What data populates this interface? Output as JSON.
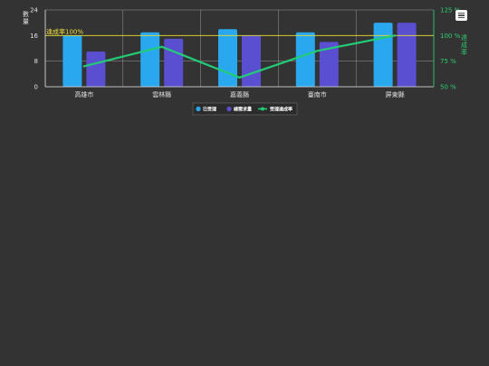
{
  "chart_data": {
    "type": "bar",
    "categories": [
      "高雄市",
      "雲林縣",
      "嘉義縣",
      "臺南市",
      "屏東縣"
    ],
    "series": [
      {
        "name": "已受理",
        "type": "bar",
        "axis": "left",
        "values": [
          16,
          17,
          18,
          17,
          20
        ],
        "color": "#29a8f0"
      },
      {
        "name": "總需求量",
        "type": "bar",
        "axis": "left",
        "values": [
          11,
          15,
          16,
          14,
          20
        ],
        "color": "#5a4fd0"
      },
      {
        "name": "受理達成率",
        "type": "line",
        "axis": "right",
        "values": [
          70,
          89,
          59,
          85,
          100
        ],
        "color": "#22cc77"
      }
    ],
    "ylabel_left": "數量",
    "ylabel_right": "達成率",
    "ylim_left": [
      0,
      24
    ],
    "yticks_left": [
      "0",
      "8",
      "16",
      "24"
    ],
    "ylim_right": [
      50,
      125
    ],
    "yticks_right": [
      "50 %",
      "75 %",
      "100 %",
      "125 %"
    ],
    "reference_line": {
      "label": "達成率100%",
      "value": 100,
      "axis": "right",
      "color": "#e8e030"
    },
    "grid": true,
    "legend_position": "bottom-center"
  },
  "menu_icon": "hamburger-menu-icon",
  "colors": {
    "background": "#333333",
    "axis": "#dddddd",
    "right_axis": "#22cc77"
  }
}
